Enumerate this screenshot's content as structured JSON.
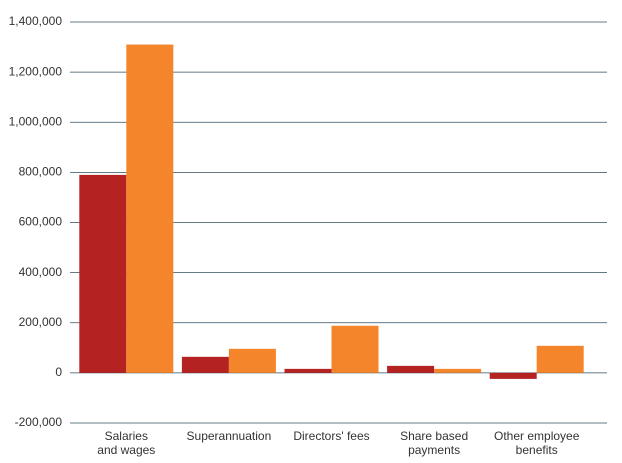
{
  "chart_data": {
    "type": "bar",
    "categories": [
      "Salaries\nand wages",
      "Superannuation",
      "Directors' fees",
      "Share based\npayments",
      "Other employee\nbenefits"
    ],
    "series": [
      {
        "color": "#b52222",
        "values": [
          790000,
          64000,
          16000,
          28000,
          -24000
        ]
      },
      {
        "color": "#f5852b",
        "values": [
          1310000,
          96000,
          188000,
          16000,
          108000
        ]
      }
    ],
    "ylim": [
      -200000,
      1400000
    ],
    "yticks": [
      {
        "value": -200000,
        "label": "-200,000"
      },
      0,
      {
        "value": 200000,
        "label": "200,000"
      },
      {
        "value": 400000,
        "label": "400,000"
      },
      {
        "value": 600000,
        "label": "600,000"
      },
      {
        "value": 800000,
        "label": "800,000"
      },
      {
        "value": 1000000,
        "label": "1,000,000"
      },
      {
        "value": 1200000,
        "label": "1,200,000"
      },
      {
        "value": 1400000,
        "label": "1,400,000"
      }
    ],
    "grid": true
  }
}
